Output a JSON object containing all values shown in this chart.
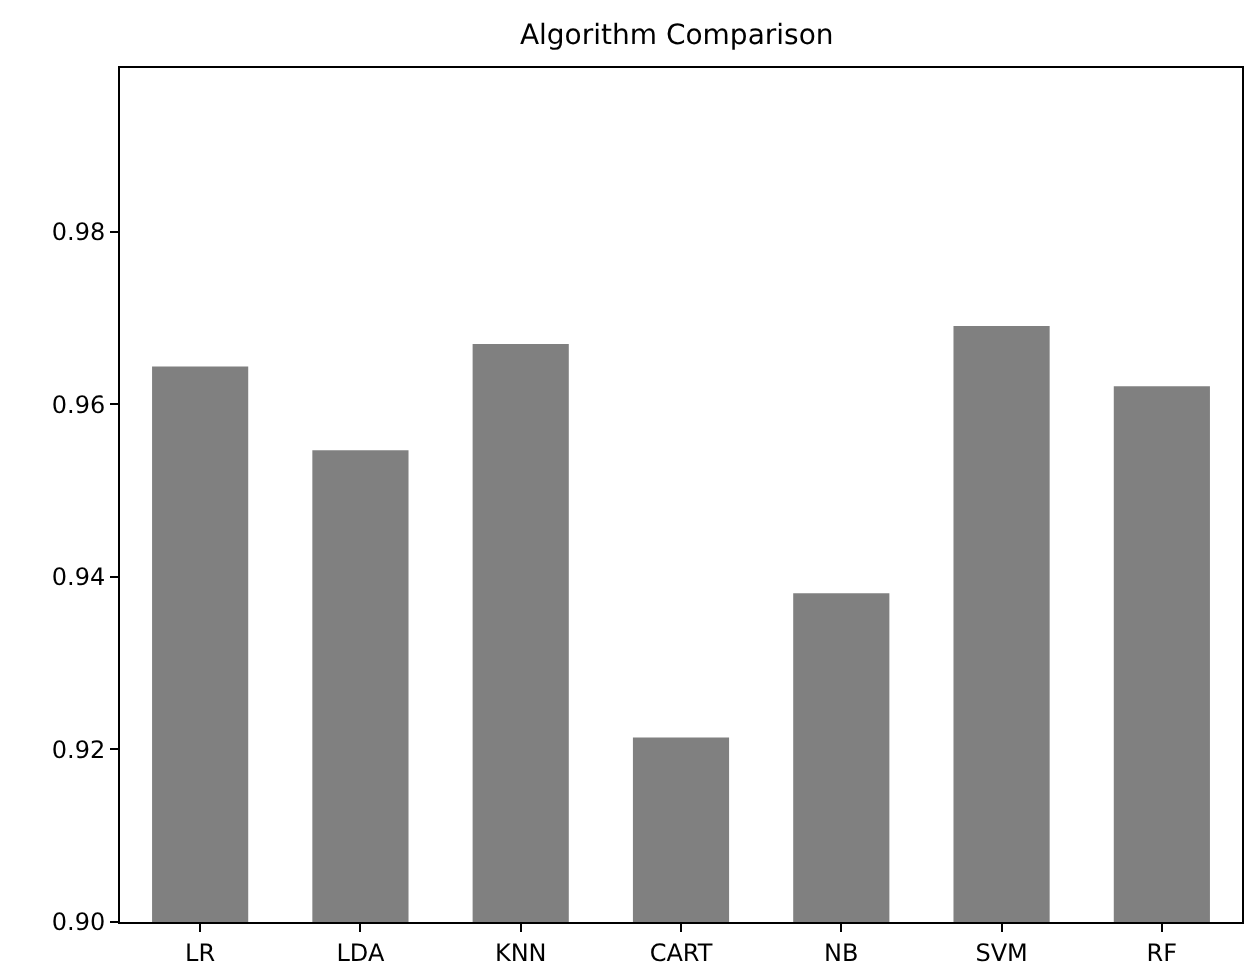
{
  "chart_data": {
    "type": "bar",
    "title": "Algorithm Comparison",
    "categories": [
      "LR",
      "LDA",
      "KNN",
      "CART",
      "NB",
      "SVM",
      "RF"
    ],
    "values": [
      0.9644,
      0.9547,
      0.967,
      0.9214,
      0.9381,
      0.9691,
      0.9621
    ],
    "color": "#808080",
    "ylim": [
      0.9,
      0.999
    ],
    "yticks": [
      {
        "value": 0.9,
        "label": "0.90"
      },
      0.92,
      0.94,
      0.96,
      0.98
    ],
    "grid": false
  }
}
